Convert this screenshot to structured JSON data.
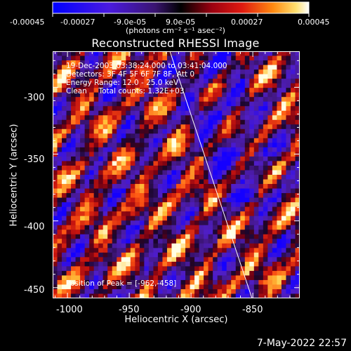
{
  "colorbar": {
    "ticks": [
      "-0.00045",
      "-0.00027",
      "-9.0e-05",
      "9.0e-05",
      "0.00027",
      "0.00045"
    ],
    "units": "(photons cm⁻² s⁻¹ asec⁻²)",
    "range": [
      -0.00045,
      0.00045
    ]
  },
  "title": "Reconstructed RHESSI Image",
  "annotations": {
    "time": "19-Dec-2003 03:38:24.000 to 03:41:04.000",
    "detectors": "Detectors: 3F 4F 5F 6F 7F 8F, Att 0",
    "energy": "Energy Range: 12.0 - 25.0 keV",
    "clean": "Clean     Total counts: 1.32E+03",
    "peak": "Position of Peak = [-962,-458]"
  },
  "axes": {
    "xlabel": "Heliocentric X (arcsec)",
    "ylabel": "Heliocentric Y (arcsec)",
    "xticks": [
      "-1000",
      "-950",
      "-900",
      "-850"
    ],
    "yticks": [
      "-300",
      "-350",
      "-400",
      "-450"
    ],
    "xrange": [
      -1012,
      -812
    ],
    "yrange": [
      -458,
      -273
    ]
  },
  "date_stamp": "7-May-2022 22:57",
  "colors": {
    "background": "#000000",
    "foreground": "#ffffff",
    "colormap": [
      "#0000ff",
      "#5a1fc0",
      "#3a1a78",
      "#000000",
      "#8a0010",
      "#d01010",
      "#ff6a10",
      "#ffd040",
      "#ffffff"
    ]
  }
}
